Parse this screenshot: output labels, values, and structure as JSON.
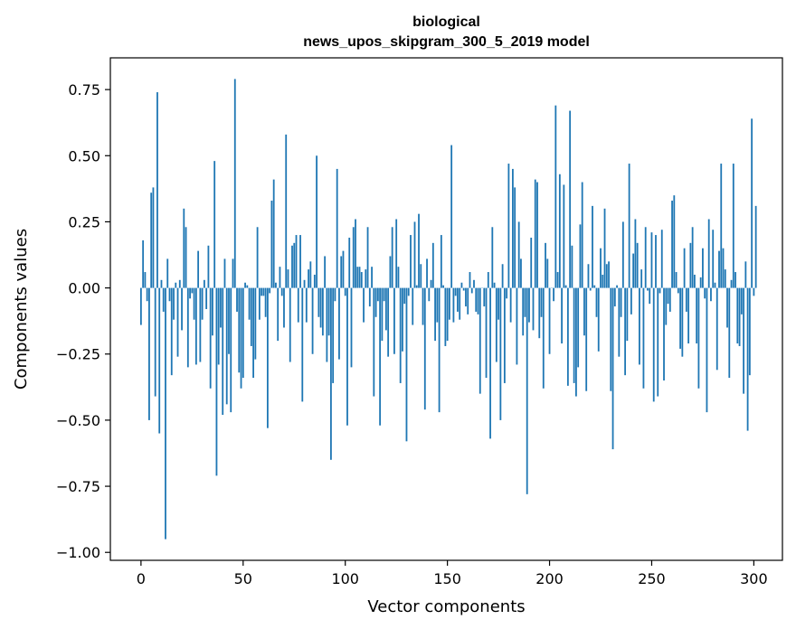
{
  "chart_data": {
    "type": "bar",
    "title": "biological",
    "subtitle": "news_upos_skipgram_300_5_2019 model",
    "xlabel": "Vector components",
    "ylabel": "Components values",
    "xlim": [
      -15,
      314
    ],
    "ylim": [
      -1.03,
      0.87
    ],
    "xticks": [
      0,
      50,
      100,
      150,
      200,
      250,
      300
    ],
    "yticks": [
      -1.0,
      -0.75,
      -0.5,
      -0.25,
      0.0,
      0.25,
      0.5,
      0.75
    ],
    "ytick_labels": [
      "−1.00",
      "−0.75",
      "−0.50",
      "−0.25",
      "0.00",
      "0.25",
      "0.50",
      "0.75"
    ],
    "color": "#1f77b4",
    "values": [
      -0.14,
      0.18,
      0.06,
      -0.05,
      -0.5,
      0.36,
      0.38,
      -0.41,
      0.74,
      -0.55,
      0.03,
      -0.09,
      -0.95,
      0.11,
      -0.05,
      -0.33,
      -0.12,
      0.02,
      -0.26,
      0.03,
      -0.16,
      0.3,
      0.23,
      -0.3,
      -0.04,
      -0.02,
      -0.12,
      -0.29,
      0.14,
      -0.28,
      -0.12,
      0.03,
      -0.08,
      0.16,
      -0.38,
      -0.18,
      0.48,
      -0.71,
      -0.29,
      -0.15,
      -0.48,
      0.11,
      -0.44,
      -0.25,
      -0.47,
      0.11,
      0.79,
      -0.09,
      -0.32,
      -0.38,
      -0.34,
      0.02,
      0.01,
      -0.12,
      -0.22,
      -0.34,
      -0.27,
      0.23,
      -0.12,
      -0.03,
      -0.03,
      -0.11,
      -0.53,
      -0.02,
      0.33,
      0.41,
      0.02,
      -0.2,
      0.08,
      -0.03,
      -0.15,
      0.58,
      0.07,
      -0.28,
      0.16,
      0.17,
      0.2,
      -0.13,
      0.2,
      -0.43,
      0.03,
      -0.13,
      0.07,
      0.1,
      -0.25,
      0.05,
      0.5,
      -0.11,
      -0.15,
      -0.18,
      0.12,
      -0.28,
      -0.18,
      -0.65,
      -0.36,
      -0.05,
      0.45,
      -0.27,
      0.12,
      0.14,
      -0.03,
      -0.52,
      0.19,
      -0.3,
      0.23,
      0.26,
      0.08,
      0.08,
      0.06,
      -0.13,
      0.07,
      0.23,
      -0.07,
      0.08,
      -0.41,
      -0.11,
      -0.05,
      -0.52,
      -0.2,
      -0.05,
      -0.16,
      -0.26,
      0.12,
      0.23,
      -0.25,
      0.26,
      0.08,
      -0.36,
      -0.24,
      -0.06,
      -0.58,
      -0.03,
      0.2,
      -0.14,
      0.25,
      0.01,
      0.28,
      0.09,
      -0.14,
      -0.46,
      0.11,
      -0.05,
      0.03,
      0.17,
      -0.2,
      -0.13,
      -0.47,
      0.2,
      0.01,
      -0.22,
      -0.2,
      -0.12,
      0.54,
      -0.13,
      -0.03,
      -0.09,
      -0.12,
      0.02,
      -0.01,
      -0.07,
      -0.1,
      0.06,
      -0.02,
      0.03,
      -0.09,
      -0.1,
      -0.4,
      0.0,
      -0.07,
      -0.34,
      0.06,
      -0.57,
      0.23,
      0.02,
      -0.28,
      -0.12,
      -0.5,
      0.09,
      -0.36,
      -0.04,
      0.47,
      -0.13,
      0.45,
      0.38,
      -0.29,
      0.25,
      0.11,
      -0.18,
      -0.11,
      -0.78,
      -0.13,
      0.19,
      -0.16,
      0.41,
      0.4,
      -0.19,
      -0.11,
      -0.38,
      0.17,
      0.11,
      -0.25,
      0.0,
      -0.05,
      0.69,
      0.06,
      0.43,
      -0.21,
      0.39,
      0.01,
      -0.37,
      0.67,
      0.16,
      -0.36,
      -0.41,
      -0.3,
      0.24,
      0.4,
      -0.18,
      -0.39,
      0.09,
      -0.01,
      0.31,
      0.01,
      -0.11,
      -0.24,
      0.15,
      0.05,
      0.3,
      0.09,
      0.1,
      -0.39,
      -0.61,
      -0.07,
      0.01,
      -0.26,
      -0.11,
      0.25,
      -0.33,
      -0.2,
      0.47,
      -0.1,
      0.13,
      0.26,
      0.17,
      -0.29,
      0.07,
      -0.38,
      0.23,
      -0.01,
      -0.06,
      0.21,
      -0.43,
      0.2,
      -0.41,
      -0.02,
      0.22,
      -0.35,
      -0.14,
      -0.06,
      -0.09,
      0.33,
      0.35,
      0.06,
      -0.02,
      -0.23,
      -0.26,
      0.15,
      -0.09,
      -0.21,
      0.17,
      0.23,
      0.05,
      -0.21,
      -0.38,
      0.04,
      0.15,
      -0.04,
      -0.47,
      0.26,
      -0.05,
      0.22,
      0.02,
      -0.31,
      0.14,
      0.47,
      0.15,
      0.07,
      -0.15,
      -0.34,
      0.03,
      0.47,
      0.06,
      -0.21,
      -0.22,
      -0.1,
      -0.4,
      0.1,
      -0.54,
      -0.33,
      0.64,
      -0.03,
      0.31
    ]
  }
}
